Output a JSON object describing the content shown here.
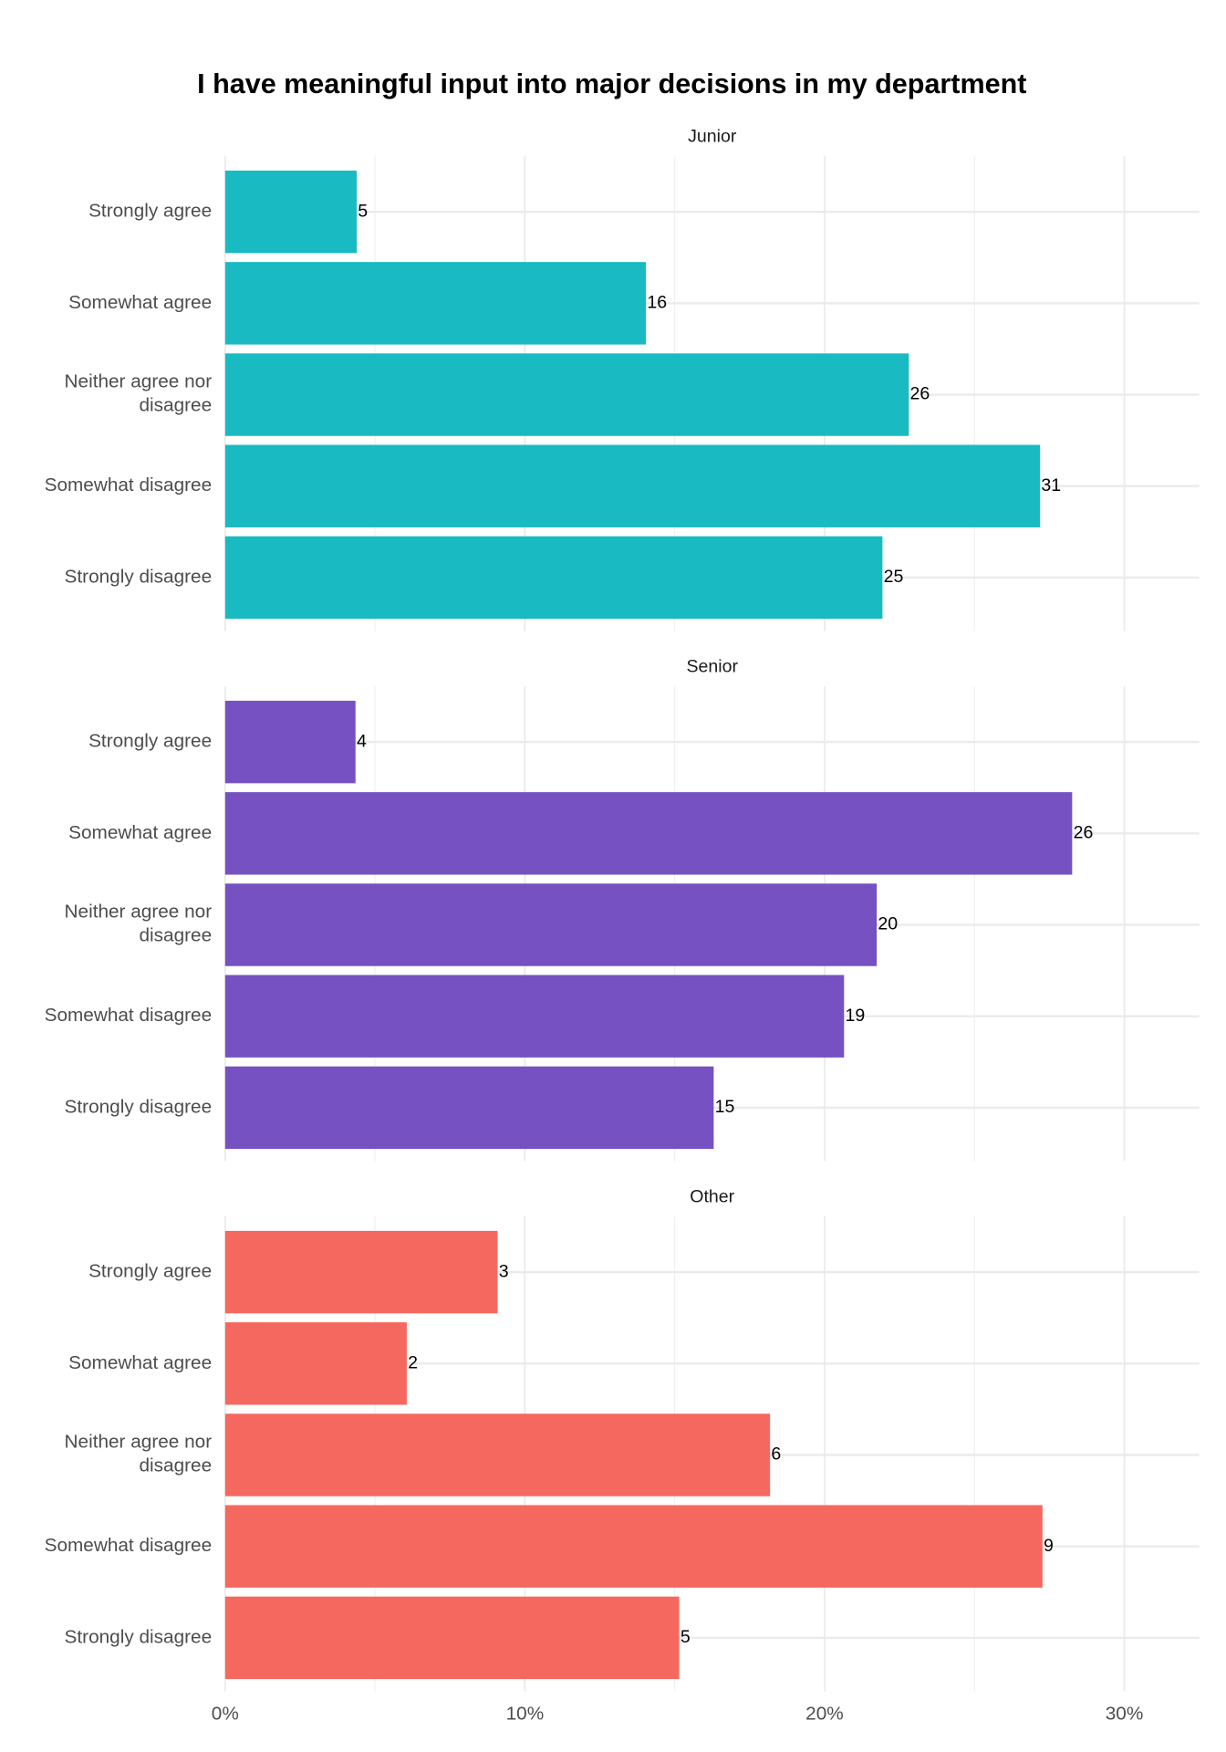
{
  "chart_data": {
    "type": "bar",
    "orientation": "horizontal",
    "title": "I have meaningful input into major decisions in my department",
    "categories": [
      "Strongly agree",
      "Somewhat agree",
      "Neither agree nor disagree",
      "Somewhat disagree",
      "Strongly disagree"
    ],
    "xlim": [
      0,
      32.5
    ],
    "xticks": [
      {
        "value": 0,
        "label": "0%"
      },
      {
        "value": 10,
        "label": "10%"
      },
      {
        "value": 20,
        "label": "20%"
      },
      {
        "value": 30,
        "label": "30%"
      }
    ],
    "xticks_minor": [
      5,
      15,
      25
    ],
    "grid": true,
    "series": [
      {
        "name": "Junior",
        "color": "#19bac1",
        "values": [
          4.39,
          14.04,
          22.81,
          27.19,
          21.93
        ],
        "counts": [
          5,
          16,
          26,
          31,
          25
        ]
      },
      {
        "name": "Senior",
        "color": "#7651c1",
        "values": [
          4.35,
          28.26,
          21.74,
          20.65,
          16.3
        ],
        "counts": [
          4,
          26,
          20,
          19,
          15
        ]
      },
      {
        "name": "Other",
        "color": "#f5685f",
        "values": [
          9.09,
          6.06,
          18.18,
          27.27,
          15.15
        ],
        "counts": [
          3,
          2,
          6,
          9,
          5
        ]
      }
    ]
  }
}
